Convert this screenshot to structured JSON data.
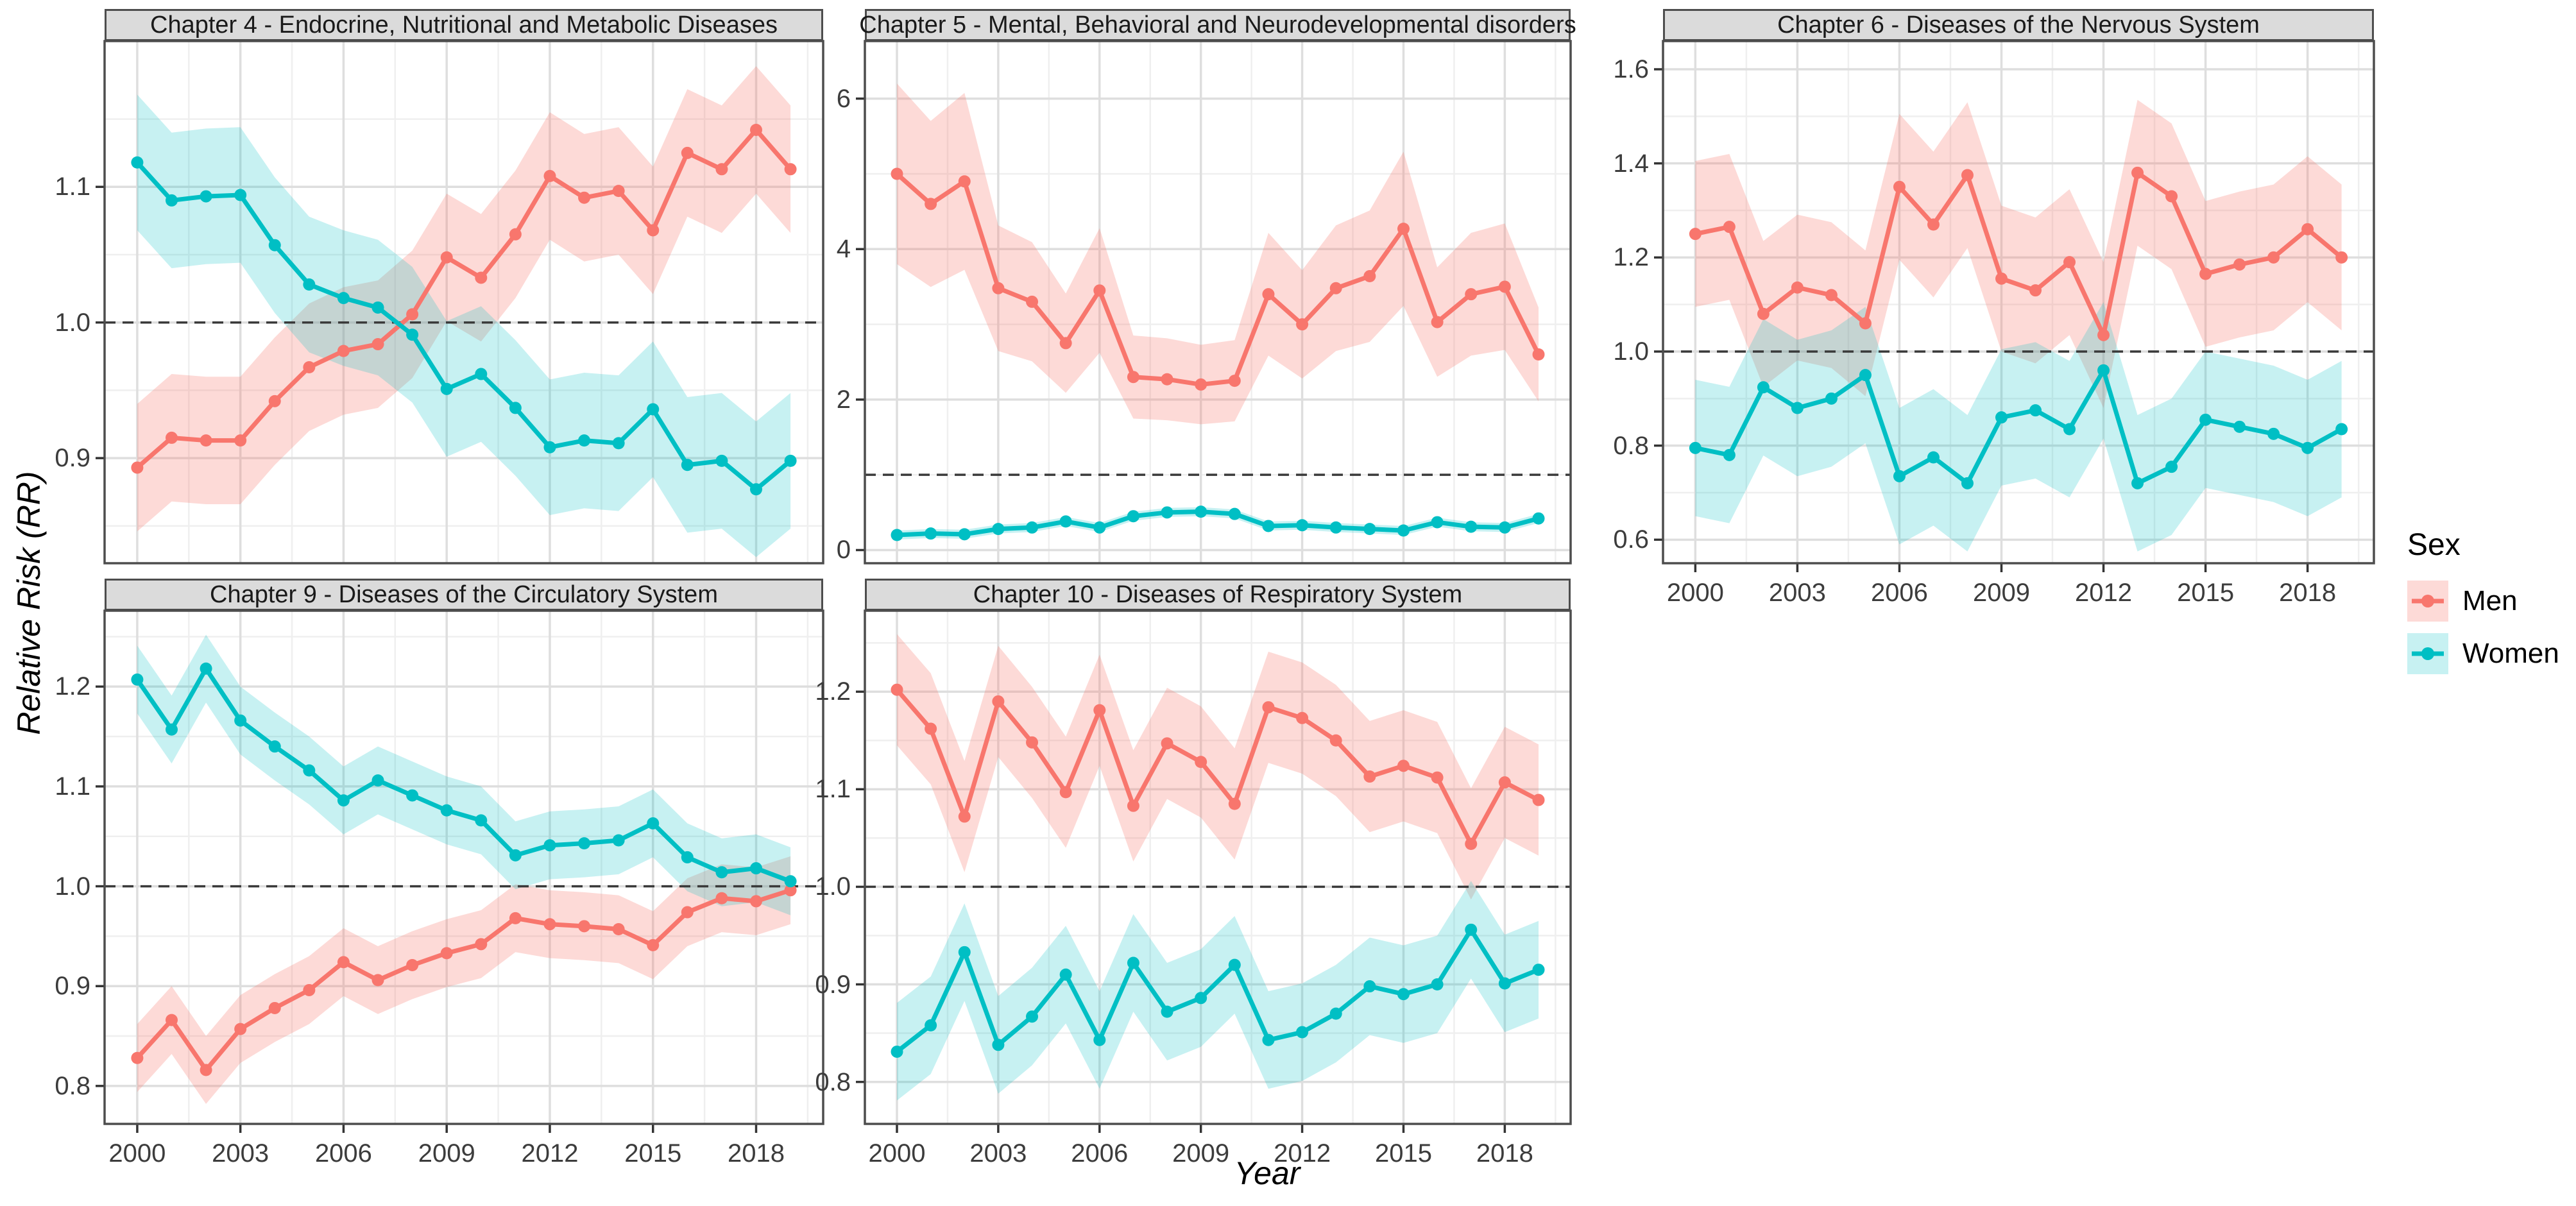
{
  "y_axis_title": "Relative Risk (RR)",
  "x_axis_title": "Year",
  "legend": {
    "title": "Sex",
    "entries": [
      "Men",
      "Women"
    ],
    "position": "right"
  },
  "colors": {
    "men": "#F8766D",
    "women": "#00BFC4",
    "men_ribbon": "rgba(248,118,109,0.27)",
    "women_ribbon": "rgba(0,191,196,0.22)",
    "strip_bg": "#DBDBDB",
    "panel_border": "#4D4D4D",
    "grid_major": "#DEDEDE",
    "grid_minor": "#EFEFEF",
    "ref_line": "#3a3a3a"
  },
  "chart_data": [
    {
      "id": "ch4",
      "type": "line",
      "title": "Chapter 4 - Endocrine, Nutritional and Metabolic Diseases",
      "x": [
        2000,
        2001,
        2002,
        2003,
        2004,
        2005,
        2006,
        2007,
        2008,
        2009,
        2010,
        2011,
        2012,
        2013,
        2014,
        2015,
        2016,
        2017,
        2018,
        2019
      ],
      "series": [
        {
          "name": "Men",
          "values": [
            0.893,
            0.915,
            0.913,
            0.913,
            0.942,
            0.967,
            0.979,
            0.984,
            1.006,
            1.048,
            1.033,
            1.065,
            1.108,
            1.092,
            1.097,
            1.068,
            1.125,
            1.113,
            1.142,
            1.113
          ],
          "ci_halfwidth": 0.047
        },
        {
          "name": "Women",
          "values": [
            1.118,
            1.09,
            1.093,
            1.094,
            1.057,
            1.028,
            1.018,
            1.011,
            0.991,
            0.951,
            0.962,
            0.937,
            0.908,
            0.913,
            0.911,
            0.936,
            0.895,
            0.898,
            0.877,
            0.898
          ],
          "ci_halfwidth": 0.05
        }
      ],
      "xlabel": "Year",
      "ylabel": "Relative Risk (RR)",
      "ylim": [
        0.8225,
        2.2075
      ],
      "ylim_used": [
        0.8225,
        1.2075
      ],
      "yticks": [
        0.9,
        1.0,
        1.1
      ],
      "yminor": [
        0.85,
        0.95,
        1.05,
        1.15
      ],
      "xticks": [
        2000,
        2003,
        2006,
        2009,
        2012,
        2015,
        2018
      ],
      "ref_line": 1.0,
      "grid": true
    },
    {
      "id": "ch5",
      "type": "line",
      "title": "Chapter 5 - Mental, Behavioral and Neurodevelopmental disorders",
      "x": [
        2000,
        2001,
        2002,
        2003,
        2004,
        2005,
        2006,
        2007,
        2008,
        2009,
        2010,
        2011,
        2012,
        2013,
        2014,
        2015,
        2016,
        2017,
        2018,
        2019
      ],
      "series": [
        {
          "name": "Men",
          "values": [
            5.0,
            4.6,
            4.9,
            3.48,
            3.3,
            2.75,
            3.45,
            2.3,
            2.27,
            2.2,
            2.25,
            3.4,
            3.0,
            3.48,
            3.64,
            4.27,
            3.03,
            3.4,
            3.5,
            2.6
          ],
          "ci_fraction": 0.24
        },
        {
          "name": "Women",
          "values": [
            0.2,
            0.22,
            0.21,
            0.28,
            0.3,
            0.38,
            0.3,
            0.45,
            0.5,
            0.51,
            0.48,
            0.32,
            0.33,
            0.3,
            0.28,
            0.26,
            0.37,
            0.31,
            0.3,
            0.42
          ],
          "ci_halfwidth": 0.06
        }
      ],
      "xlabel": "Year",
      "ylabel": "Relative Risk (RR)",
      "ylim_used": [
        -0.175,
        6.765
      ],
      "yticks": [
        0,
        2,
        4,
        6
      ],
      "yminor": [
        1,
        3,
        5
      ],
      "xticks": [
        2000,
        2003,
        2006,
        2009,
        2012,
        2015,
        2018
      ],
      "ref_line": 1.0,
      "grid": true
    },
    {
      "id": "ch6",
      "type": "line",
      "title": "Chapter 6 - Diseases of the Nervous System",
      "x": [
        2000,
        2001,
        2002,
        2003,
        2004,
        2005,
        2006,
        2007,
        2008,
        2009,
        2010,
        2011,
        2012,
        2013,
        2014,
        2015,
        2016,
        2017,
        2018,
        2019
      ],
      "series": [
        {
          "name": "Men",
          "values": [
            1.25,
            1.265,
            1.08,
            1.136,
            1.12,
            1.06,
            1.35,
            1.27,
            1.375,
            1.155,
            1.13,
            1.19,
            1.035,
            1.38,
            1.33,
            1.165,
            1.185,
            1.2,
            1.26,
            1.2
          ],
          "ci_halfwidth": 0.155
        },
        {
          "name": "Women",
          "values": [
            0.795,
            0.78,
            0.924,
            0.88,
            0.9,
            0.95,
            0.735,
            0.775,
            0.72,
            0.86,
            0.875,
            0.835,
            0.96,
            0.72,
            0.755,
            0.855,
            0.84,
            0.825,
            0.795,
            0.835
          ],
          "ci_halfwidth": 0.145
        }
      ],
      "xlabel": "Year",
      "ylabel": "Relative Risk (RR)",
      "ylim_used": [
        0.55,
        1.66
      ],
      "yticks": [
        0.6,
        0.8,
        1.0,
        1.2,
        1.4,
        1.6
      ],
      "yminor": [
        0.7,
        0.9,
        1.1,
        1.3,
        1.5
      ],
      "xticks": [
        2000,
        2003,
        2006,
        2009,
        2012,
        2015,
        2018
      ],
      "ref_line": 1.0,
      "grid": true
    },
    {
      "id": "ch9",
      "type": "line",
      "title": "Chapter 9 - Diseases of the Circulatory System",
      "x": [
        2000,
        2001,
        2002,
        2003,
        2004,
        2005,
        2006,
        2007,
        2008,
        2009,
        2010,
        2011,
        2012,
        2013,
        2014,
        2015,
        2016,
        2017,
        2018,
        2019
      ],
      "series": [
        {
          "name": "Men",
          "values": [
            0.828,
            0.866,
            0.816,
            0.857,
            0.878,
            0.896,
            0.924,
            0.906,
            0.921,
            0.933,
            0.942,
            0.968,
            0.962,
            0.96,
            0.957,
            0.941,
            0.974,
            0.988,
            0.985,
            0.996
          ],
          "ci_halfwidth": 0.034
        },
        {
          "name": "Women",
          "values": [
            1.207,
            1.157,
            1.218,
            1.166,
            1.14,
            1.116,
            1.086,
            1.106,
            1.091,
            1.076,
            1.066,
            1.031,
            1.041,
            1.043,
            1.046,
            1.063,
            1.029,
            1.014,
            1.018,
            1.005
          ],
          "ci_halfwidth": 0.034
        }
      ],
      "xlabel": "Year",
      "ylabel": "Relative Risk (RR)",
      "ylim_used": [
        0.762,
        1.276
      ],
      "yticks": [
        0.8,
        0.9,
        1.0,
        1.1,
        1.2
      ],
      "yminor": [
        0.85,
        0.95,
        1.05,
        1.15,
        1.25
      ],
      "xticks": [
        2000,
        2003,
        2006,
        2009,
        2012,
        2015,
        2018
      ],
      "ref_line": 1.0,
      "grid": true
    },
    {
      "id": "ch10",
      "type": "line",
      "title": "Chapter 10 - Diseases of Respiratory System",
      "x": [
        2000,
        2001,
        2002,
        2003,
        2004,
        2005,
        2006,
        2007,
        2008,
        2009,
        2010,
        2011,
        2012,
        2013,
        2014,
        2015,
        2016,
        2017,
        2018,
        2019
      ],
      "series": [
        {
          "name": "Men",
          "values": [
            1.202,
            1.162,
            1.072,
            1.19,
            1.148,
            1.097,
            1.181,
            1.083,
            1.147,
            1.128,
            1.085,
            1.184,
            1.173,
            1.15,
            1.113,
            1.124,
            1.112,
            1.044,
            1.107,
            1.089
          ],
          "ci_halfwidth": 0.057
        },
        {
          "name": "Women",
          "values": [
            0.831,
            0.858,
            0.933,
            0.838,
            0.867,
            0.91,
            0.843,
            0.922,
            0.872,
            0.886,
            0.92,
            0.843,
            0.851,
            0.87,
            0.898,
            0.89,
            0.9,
            0.956,
            0.901,
            0.915
          ],
          "ci_halfwidth": 0.05
        }
      ],
      "xlabel": "Year",
      "ylabel": "Relative Risk (RR)",
      "ylim_used": [
        0.757,
        1.283
      ],
      "yticks": [
        0.8,
        0.9,
        1.0,
        1.1,
        1.2
      ],
      "yminor": [
        0.85,
        0.95,
        1.05,
        1.15,
        1.25
      ],
      "xticks": [
        2000,
        2003,
        2006,
        2009,
        2012,
        2015,
        2018
      ],
      "ref_line": 1.0,
      "grid": true
    }
  ]
}
